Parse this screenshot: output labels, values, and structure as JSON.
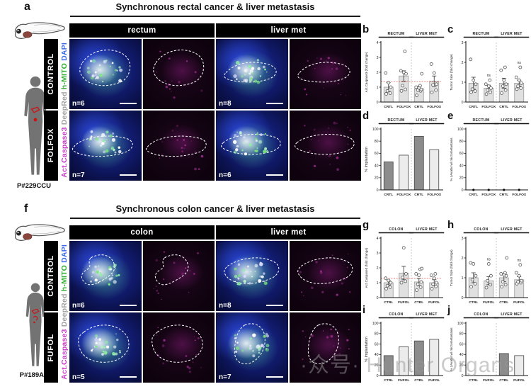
{
  "figure": {
    "watermark": "·众号· Hunter Organs",
    "panels": {
      "a": {
        "letter": "a",
        "title": "Synchronous rectal cancer & liver metastasis",
        "columns": [
          "rectum",
          "liver met"
        ],
        "rows": [
          "CONTROL",
          "FOLFOX"
        ],
        "patient_id": "P#229CCU",
        "channels": [
          {
            "label": "Act.Caspase3",
            "color": "#c538c5"
          },
          {
            "label": "DeepRed",
            "color": "#a0a0a0"
          },
          {
            "label": "h-MITO",
            "color": "#2fae2f"
          },
          {
            "label": "DAPI",
            "color": "#3b6beb"
          }
        ],
        "micrographs": [
          {
            "type": "merged",
            "n": "n=6"
          },
          {
            "type": "magenta",
            "n": null
          },
          {
            "type": "merged",
            "n": "n=8"
          },
          {
            "type": "magenta",
            "n": null
          },
          {
            "type": "merged",
            "n": "n=7"
          },
          {
            "type": "magenta",
            "n": null
          },
          {
            "type": "merged",
            "n": "n=6"
          },
          {
            "type": "magenta",
            "n": null
          }
        ]
      },
      "f": {
        "letter": "f",
        "title": "Synchronous colon cancer & liver metastasis",
        "columns": [
          "colon",
          "liver met"
        ],
        "rows": [
          "CONTROL",
          "FUFOL"
        ],
        "patient_id": "P#189AS",
        "channels": [
          {
            "label": "Act.Caspase3",
            "color": "#c538c5"
          },
          {
            "label": "DeepRed",
            "color": "#a0a0a0"
          },
          {
            "label": "h-MITO",
            "color": "#2fae2f"
          },
          {
            "label": "DAPI",
            "color": "#3b6beb"
          }
        ],
        "micrographs": [
          {
            "type": "merged",
            "n": "n=6"
          },
          {
            "type": "magenta",
            "n": null
          },
          {
            "type": "merged",
            "n": "n=8"
          },
          {
            "type": "magenta",
            "n": null
          },
          {
            "type": "merged",
            "n": "n=5"
          },
          {
            "type": "magenta",
            "n": null
          },
          {
            "type": "merged",
            "n": "n=7"
          },
          {
            "type": "magenta",
            "n": null
          }
        ]
      }
    }
  },
  "chart_data": [
    {
      "id": "b",
      "panel_letter": "b",
      "type": "scatter-bar",
      "ylabel": "Act.Caspase3 (fold change)",
      "ylim": [
        0,
        4
      ],
      "yticks": [
        0,
        1,
        2,
        3,
        4
      ],
      "groups": [
        "RECTUM",
        "LIVER MET"
      ],
      "categories": [
        "CRTL",
        "FOLFOX",
        "CRTL",
        "FOLFOX"
      ],
      "values": [
        1.0,
        1.75,
        0.9,
        1.4
      ],
      "errors": [
        0.3,
        0.35,
        0.15,
        0.35
      ],
      "points": [
        [
          0.55,
          0.6,
          0.75,
          1.0,
          1.3,
          1.95
        ],
        [
          0.75,
          0.85,
          1.1,
          1.9,
          2.0,
          2.1,
          3.4
        ],
        [
          0.45,
          0.75,
          0.8,
          0.85,
          0.95,
          1.0,
          1.1,
          1.9
        ],
        [
          0.65,
          0.8,
          1.15,
          1.2,
          1.95,
          2.55
        ]
      ],
      "refline": 1.35,
      "ns": []
    },
    {
      "id": "c",
      "panel_letter": "c",
      "type": "scatter-bar",
      "ylabel": "Tumor Size (fold change)",
      "ylim": [
        0,
        3
      ],
      "yticks": [
        0,
        1,
        2,
        3
      ],
      "groups": [
        "RECTUM",
        "LIVER MET"
      ],
      "categories": [
        "CRTL",
        "FOLFOX",
        "CRTL",
        "FOLFOX"
      ],
      "values": [
        0.95,
        0.7,
        0.95,
        0.95
      ],
      "errors": [
        0.3,
        0.15,
        0.25,
        0.15
      ],
      "points": [
        [
          0.5,
          0.55,
          0.65,
          0.9,
          1.1,
          2.15
        ],
        [
          0.4,
          0.5,
          0.6,
          0.7,
          0.8,
          0.9,
          1.1
        ],
        [
          0.45,
          0.6,
          0.8,
          0.9,
          1.1,
          1.6,
          1.75
        ],
        [
          0.65,
          0.7,
          0.8,
          0.95,
          1.1,
          1.25,
          1.75
        ]
      ],
      "ns": [
        1,
        3
      ]
    },
    {
      "id": "d",
      "panel_letter": "d",
      "type": "bar",
      "ylabel": "% Implantation",
      "ylim": [
        0,
        100
      ],
      "yticks": [
        0,
        20,
        40,
        60,
        80,
        100
      ],
      "groups": [
        "RECTUM",
        "LIVER MET"
      ],
      "categories": [
        "CRTL",
        "FOLFOX",
        "CRTL",
        "FOLFOX"
      ],
      "values": [
        46,
        57,
        88,
        66
      ],
      "bar_colors": [
        "#8c8c8c",
        "#ececec",
        "#8c8c8c",
        "#ececec"
      ]
    },
    {
      "id": "e",
      "panel_letter": "e",
      "type": "bar",
      "ylabel": "% zAvatar w/ micrometastasis",
      "ylim": [
        0,
        100
      ],
      "yticks": [
        0,
        20,
        40,
        60,
        80,
        100
      ],
      "groups": [
        "RECTUM",
        "LIVER MET"
      ],
      "categories": [
        "CRTL",
        "FOLFOX",
        "CRTL",
        "FOLFOX"
      ],
      "values": [
        0,
        0,
        0,
        0
      ],
      "bar_colors": [
        "#8c8c8c",
        "#ececec",
        "#8c8c8c",
        "#ececec"
      ],
      "zero_dots": true
    },
    {
      "id": "g",
      "panel_letter": "g",
      "type": "scatter-bar",
      "ylabel": "Act.Caspase3 (fold change)",
      "ylim": [
        0,
        4
      ],
      "yticks": [
        0,
        1,
        2,
        3,
        4
      ],
      "groups": [
        "COLON",
        "LIVER MET"
      ],
      "categories": [
        "CTRL",
        "FUFOL",
        "CTRL",
        "FUFOL"
      ],
      "values": [
        1.0,
        1.65,
        1.05,
        1.0
      ],
      "errors": [
        0.15,
        0.45,
        0.25,
        0.2
      ],
      "points": [
        [
          0.6,
          0.7,
          0.8,
          1.0,
          1.15,
          1.3
        ],
        [
          1.0,
          1.1,
          1.35,
          1.6,
          3.35
        ],
        [
          0.5,
          0.7,
          0.9,
          1.05,
          1.5,
          1.6,
          1.9,
          1.95
        ],
        [
          0.6,
          0.75,
          0.9,
          1.0,
          1.3,
          1.5,
          1.6
        ]
      ],
      "refline": 1.3,
      "ns": []
    },
    {
      "id": "h",
      "panel_letter": "h",
      "type": "scatter-bar",
      "ylabel": "Tumor Size (fold change)",
      "ylim": [
        0,
        3
      ],
      "yticks": [
        0,
        1,
        2,
        3
      ],
      "groups": [
        "COLON",
        "LIVER MET"
      ],
      "categories": [
        "CTRL",
        "FUFOL",
        "CTRL",
        "FUFOL"
      ],
      "values": [
        1.0,
        0.85,
        1.0,
        0.9
      ],
      "errors": [
        0.25,
        0.2,
        0.2,
        0.15
      ],
      "points": [
        [
          0.55,
          0.7,
          0.9,
          1.1,
          1.7,
          1.75
        ],
        [
          0.5,
          0.65,
          0.85,
          1.1,
          1.7
        ],
        [
          0.55,
          0.65,
          0.8,
          1.1,
          1.15,
          1.2,
          1.25,
          2.0
        ],
        [
          0.7,
          0.75,
          0.8,
          0.85,
          1.1,
          1.25,
          1.65
        ]
      ],
      "ns": [
        1,
        3
      ]
    },
    {
      "id": "i",
      "panel_letter": "i",
      "type": "bar",
      "ylabel": "% Implantation",
      "ylim": [
        0,
        100
      ],
      "yticks": [
        0,
        20,
        40,
        60,
        80,
        100
      ],
      "groups": [
        "COLON",
        "LIVER MET"
      ],
      "categories": [
        "CTRL",
        "FUFOL",
        "CTRL",
        "FUFOL"
      ],
      "values": [
        38,
        55,
        66,
        69
      ],
      "bar_colors": [
        "#8c8c8c",
        "#ececec",
        "#8c8c8c",
        "#ececec"
      ]
    },
    {
      "id": "j",
      "panel_letter": "j",
      "type": "bar",
      "ylabel": "% zAvatar w/ micrometastasis",
      "ylim": [
        0,
        100
      ],
      "yticks": [
        0,
        20,
        40,
        60,
        80,
        100
      ],
      "groups": [
        "COLON",
        "LIVER MET"
      ],
      "categories": [
        "CTRL",
        "FUFOL",
        "CTRL",
        "FUFOL"
      ],
      "values": [
        0,
        0,
        42,
        38
      ],
      "bar_colors": [
        "#8c8c8c",
        "#ececec",
        "#8c8c8c",
        "#ececec"
      ]
    }
  ]
}
